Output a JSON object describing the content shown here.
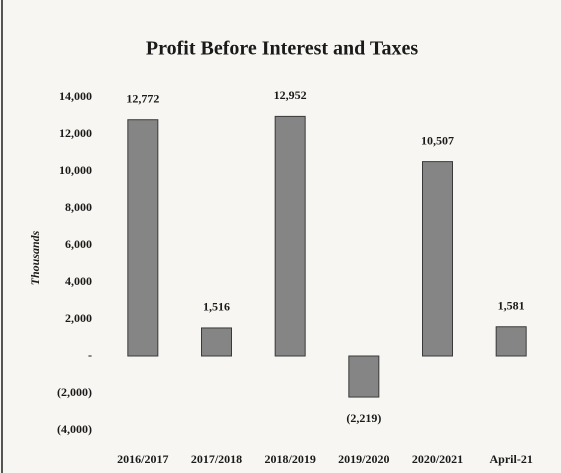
{
  "chart_data": {
    "type": "bar",
    "title": "Profit Before Interest and Taxes",
    "y_label": "Thousands",
    "categories": [
      "2016/2017",
      "2017/2018",
      "2018/2019",
      "2019/2020",
      "2020/2021",
      "April-21"
    ],
    "values": [
      12772,
      1516,
      12952,
      -2219,
      10507,
      1581
    ],
    "value_labels": [
      "12,772",
      "1,516",
      "12,952",
      "(2,219)",
      "10,507",
      "1,581"
    ],
    "color": "#858585",
    "ylim": [
      -4000,
      14000
    ],
    "yticks": [
      {
        "value": 14000,
        "label": "14,000"
      },
      {
        "value": 12000,
        "label": "12,000"
      },
      {
        "value": 10000,
        "label": "10,000"
      },
      {
        "value": 8000,
        "label": "8,000"
      },
      {
        "value": 6000,
        "label": "6,000"
      },
      {
        "value": 4000,
        "label": "4,000"
      },
      {
        "value": 2000,
        "label": "2,000"
      },
      {
        "value": 0,
        "label": "-"
      },
      {
        "value": -2000,
        "label": "(2,000)"
      },
      {
        "value": -4000,
        "label": "(4,000)"
      }
    ],
    "grid": false
  }
}
